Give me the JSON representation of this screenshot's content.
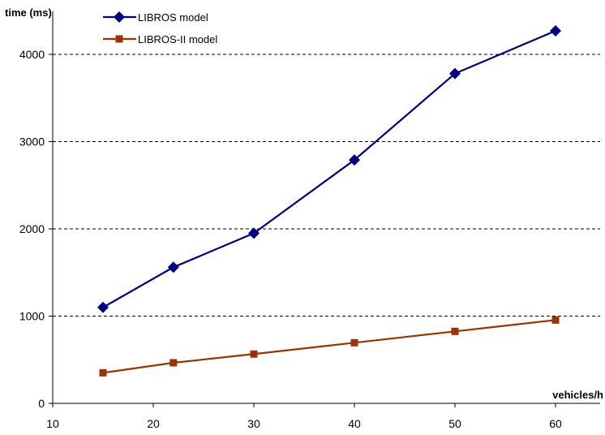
{
  "chart_data": {
    "type": "line",
    "title": "",
    "xlabel": "vehicles/h",
    "ylabel": "time (ms)",
    "x": [
      15,
      22,
      30,
      40,
      50,
      60
    ],
    "xlim": [
      10,
      60
    ],
    "ylim": [
      0,
      4000
    ],
    "x_ticks": [
      "10",
      "20",
      "30",
      "40",
      "50",
      "60"
    ],
    "y_ticks": [
      "0",
      "1000",
      "2000",
      "3000",
      "4000"
    ],
    "grid": "horizontal dashed",
    "legend_position": "top-left",
    "series": [
      {
        "name": "LIBROS model",
        "values": [
          1100,
          1560,
          1950,
          2790,
          3780,
          4270
        ],
        "color": "#000080",
        "marker": "diamond"
      },
      {
        "name": "LIBROS-II model",
        "values": [
          350,
          465,
          565,
          695,
          825,
          955
        ],
        "color": "#993300",
        "marker": "square"
      }
    ]
  }
}
